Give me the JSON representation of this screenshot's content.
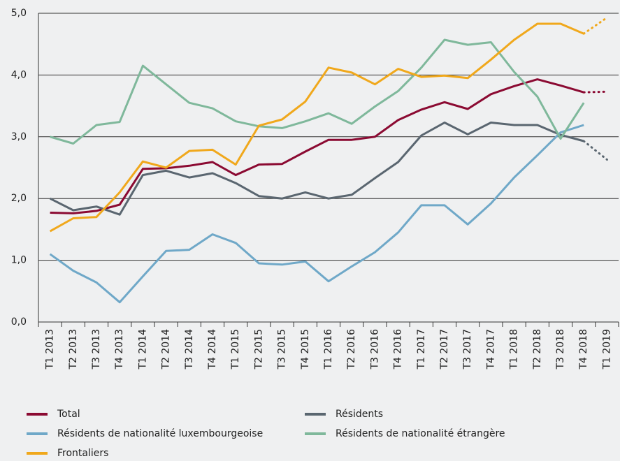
{
  "chart_data": {
    "type": "line",
    "categories": [
      "T1 2013",
      "T2 2013",
      "T3 2013",
      "T4 2013",
      "T1 2014",
      "T2 2014",
      "T3 2014",
      "T4 2014",
      "T1 2015",
      "T2 2015",
      "T3 2015",
      "T4 2015",
      "T1 2016",
      "T2 2016",
      "T3 2016",
      "T4 2016",
      "T1 2017",
      "T2 2017",
      "T3 2017",
      "T4 2017",
      "T1 2018",
      "T2 2018",
      "T3 2018",
      "T4 2018",
      "T1 2019"
    ],
    "series": [
      {
        "name": "Total",
        "color": "#8b0a32",
        "values": [
          1.77,
          1.76,
          1.8,
          1.9,
          2.48,
          2.49,
          2.53,
          2.59,
          2.38,
          2.55,
          2.56,
          2.76,
          2.95,
          2.95,
          3.0,
          3.27,
          3.44,
          3.56,
          3.45,
          3.69,
          3.82,
          3.93,
          3.83,
          3.72,
          3.73
        ]
      },
      {
        "name": "Résidents",
        "color": "#5a6670",
        "values": [
          2.0,
          1.81,
          1.87,
          1.74,
          2.38,
          2.45,
          2.34,
          2.41,
          2.25,
          2.04,
          2.0,
          2.1,
          2.0,
          2.06,
          2.33,
          2.59,
          3.02,
          3.23,
          3.04,
          3.23,
          3.19,
          3.19,
          3.03,
          2.93,
          2.63
        ]
      },
      {
        "name": "Résidents de nationalité luxembourgeoise",
        "color": "#6fa8c8",
        "values": [
          1.1,
          0.83,
          0.64,
          0.32,
          0.74,
          1.15,
          1.17,
          1.42,
          1.28,
          0.95,
          0.93,
          0.98,
          0.66,
          0.9,
          1.13,
          1.45,
          1.89,
          1.89,
          1.58,
          1.92,
          2.34,
          2.7,
          3.07,
          3.19,
          null
        ]
      },
      {
        "name": "Résidents de nationalité étrangère",
        "color": "#7fb89b",
        "values": [
          3.0,
          2.89,
          3.19,
          3.24,
          4.15,
          3.85,
          3.55,
          3.46,
          3.25,
          3.17,
          3.14,
          3.25,
          3.38,
          3.21,
          3.49,
          3.74,
          4.12,
          4.57,
          4.49,
          4.53,
          4.05,
          3.65,
          2.97,
          3.55,
          null
        ]
      },
      {
        "name": "Frontaliers",
        "color": "#f0a81c",
        "values": [
          1.47,
          1.68,
          1.7,
          2.1,
          2.6,
          2.5,
          2.77,
          2.79,
          2.55,
          3.18,
          3.28,
          3.57,
          4.12,
          4.04,
          3.85,
          4.1,
          3.97,
          3.99,
          3.95,
          4.25,
          4.57,
          4.83,
          4.83,
          4.67,
          4.93
        ]
      }
    ],
    "ylim": [
      0,
      5
    ],
    "yticks": [
      {
        "value": 0,
        "label": "0,0"
      },
      {
        "value": 1,
        "label": "1,0"
      },
      {
        "value": 2,
        "label": "2,0"
      },
      {
        "value": 3,
        "label": "3,0"
      },
      {
        "value": 4,
        "label": "4,0"
      },
      {
        "value": 5,
        "label": "5,0"
      }
    ],
    "grid": true,
    "dotted_last_segment": true,
    "legend": "bottom"
  }
}
